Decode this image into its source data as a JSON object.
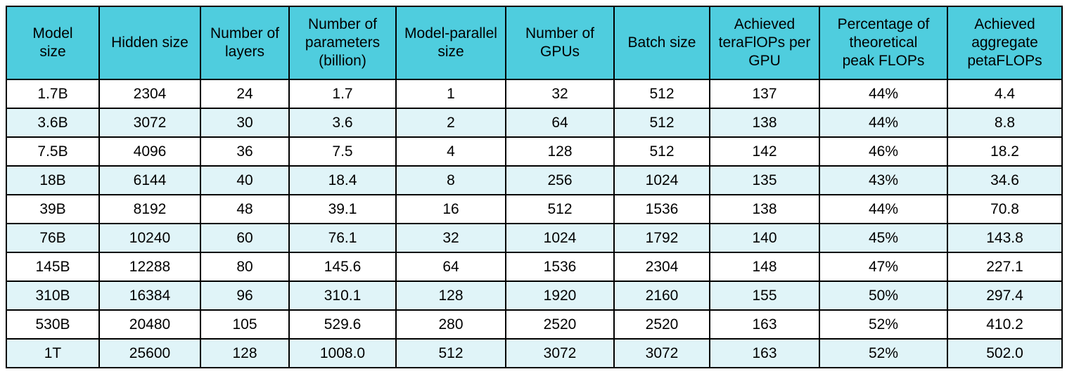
{
  "colors": {
    "header_bg": "#4fcdde",
    "row_bg": "#ffffff",
    "row_alt_bg": "#e0f4f8",
    "border": "#000000",
    "text": "#000000"
  },
  "chart_data": {
    "type": "table",
    "title": "",
    "columns": [
      "Model size",
      "Hidden size",
      "Number of layers",
      "Number of parameters (billion)",
      "Model-parallel size",
      "Number of GPUs",
      "Batch size",
      "Achieved teraFlOPs per GPU",
      "Percentage of theoretical peak FLOPs",
      "Achieved aggregate petaFLOPs"
    ],
    "header_lines": [
      [
        "Model",
        "size"
      ],
      [
        "Hidden size"
      ],
      [
        "Number of",
        "layers"
      ],
      [
        "Number of",
        "parameters",
        "(billion)"
      ],
      [
        "Model-parallel",
        "size"
      ],
      [
        "Number of",
        "GPUs"
      ],
      [
        "Batch size"
      ],
      [
        "Achieved",
        "teraFlOPs per",
        "GPU"
      ],
      [
        "Percentage of",
        "theoretical",
        "peak FLOPs"
      ],
      [
        "Achieved",
        "aggregate",
        "petaFLOPs"
      ]
    ],
    "rows": [
      [
        "1.7B",
        "2304",
        "24",
        "1.7",
        "1",
        "32",
        "512",
        "137",
        "44%",
        "4.4"
      ],
      [
        "3.6B",
        "3072",
        "30",
        "3.6",
        "2",
        "64",
        "512",
        "138",
        "44%",
        "8.8"
      ],
      [
        "7.5B",
        "4096",
        "36",
        "7.5",
        "4",
        "128",
        "512",
        "142",
        "46%",
        "18.2"
      ],
      [
        "18B",
        "6144",
        "40",
        "18.4",
        "8",
        "256",
        "1024",
        "135",
        "43%",
        "34.6"
      ],
      [
        "39B",
        "8192",
        "48",
        "39.1",
        "16",
        "512",
        "1536",
        "138",
        "44%",
        "70.8"
      ],
      [
        "76B",
        "10240",
        "60",
        "76.1",
        "32",
        "1024",
        "1792",
        "140",
        "45%",
        "143.8"
      ],
      [
        "145B",
        "12288",
        "80",
        "145.6",
        "64",
        "1536",
        "2304",
        "148",
        "47%",
        "227.1"
      ],
      [
        "310B",
        "16384",
        "96",
        "310.1",
        "128",
        "1920",
        "2160",
        "155",
        "50%",
        "297.4"
      ],
      [
        "530B",
        "20480",
        "105",
        "529.6",
        "280",
        "2520",
        "2520",
        "163",
        "52%",
        "410.2"
      ],
      [
        "1T",
        "25600",
        "128",
        "1008.0",
        "512",
        "3072",
        "3072",
        "163",
        "52%",
        "502.0"
      ]
    ]
  }
}
